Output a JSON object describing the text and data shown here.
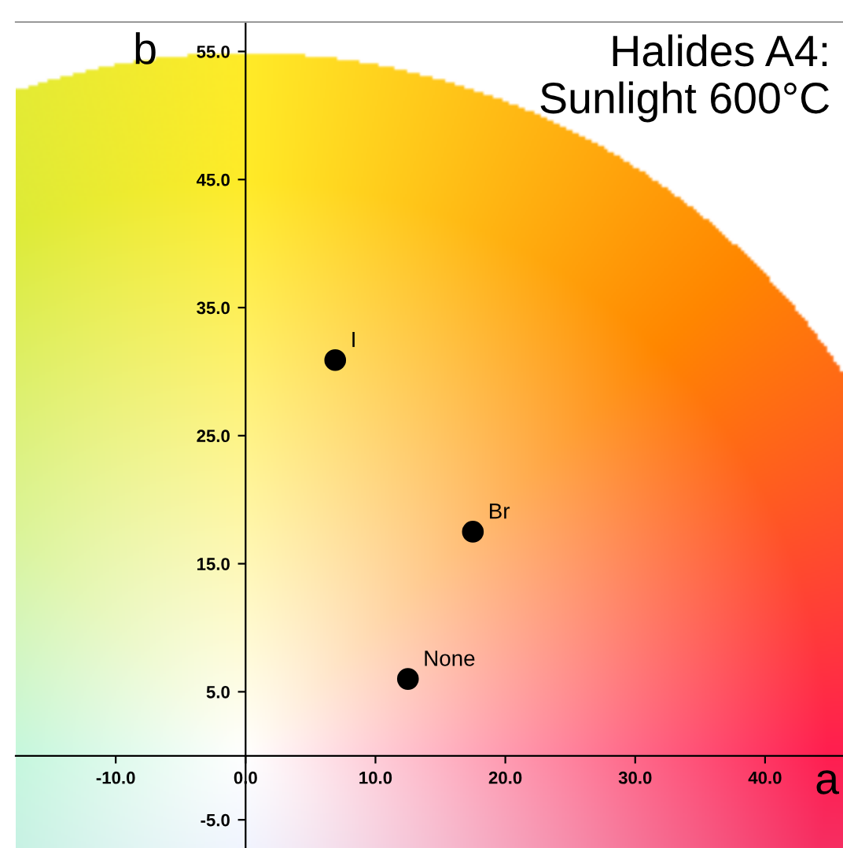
{
  "chart_data": {
    "type": "scatter",
    "title": "Halides A4:\nSunlight 600°C",
    "xlabel": "a",
    "ylabel": "b",
    "x": [
      6.9,
      17.5,
      12.5
    ],
    "values": [
      30.9,
      17.5,
      6.0
    ],
    "color": "#000000",
    "marker": "circle",
    "annotations": [
      {
        "text": "I",
        "x": 6.9,
        "y": 30.9
      },
      {
        "text": "Br",
        "x": 17.5,
        "y": 17.5
      },
      {
        "text": "None",
        "x": 12.5,
        "y": 6.0
      }
    ],
    "xlim": [
      -17.7,
      46
    ],
    "ylim": [
      -7.2,
      57.3
    ],
    "xticks": [
      {
        "value": -10,
        "label": "-10.0"
      },
      {
        "value": 0,
        "label": "0.0"
      },
      {
        "value": 10,
        "label": "10.0"
      },
      {
        "value": 20,
        "label": "20.0"
      },
      {
        "value": 30,
        "label": "30.0"
      },
      {
        "value": 40,
        "label": "40.0"
      }
    ],
    "yticks": [
      {
        "value": -5,
        "label": "-5.0"
      },
      {
        "value": 5,
        "label": "5.0"
      },
      {
        "value": 15,
        "label": "15.0"
      },
      {
        "value": 25,
        "label": "25.0"
      },
      {
        "value": 35,
        "label": "35.0"
      },
      {
        "value": 45,
        "label": "45.0"
      },
      {
        "value": 55,
        "label": "55.0"
      }
    ],
    "grid": false
  }
}
